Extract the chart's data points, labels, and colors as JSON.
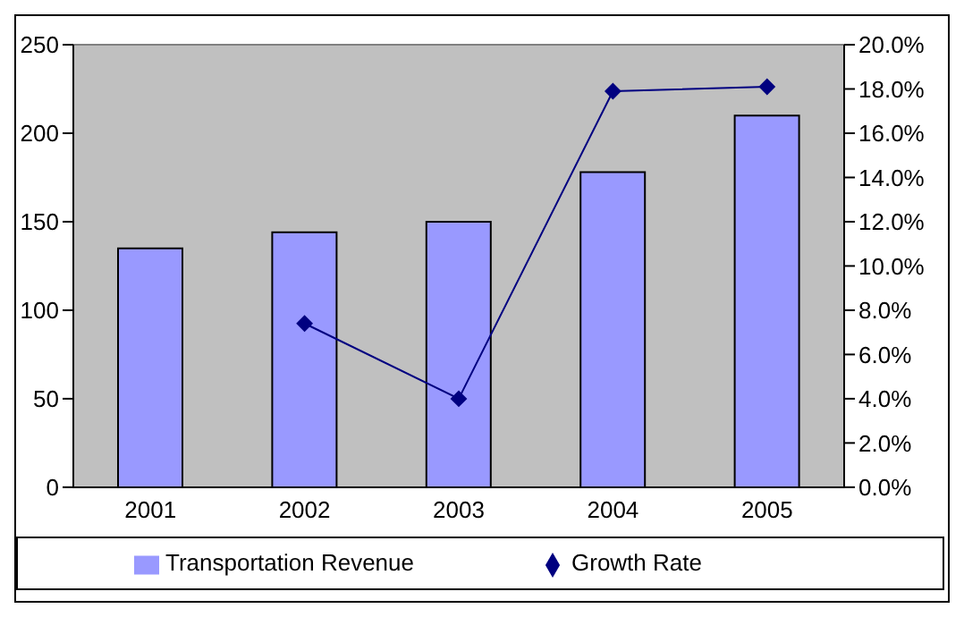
{
  "chart_data": {
    "type": "bar",
    "categories": [
      "2001",
      "2002",
      "2003",
      "2004",
      "2005"
    ],
    "series": [
      {
        "name": "Transportation Revenue",
        "color": "#9999ff",
        "values": [
          135,
          144,
          150,
          178,
          210
        ]
      },
      {
        "name": "Growth Rate",
        "type": "line",
        "axis": "y2",
        "color": "#000080",
        "values": [
          null,
          7.4,
          4.0,
          17.9,
          18.1
        ]
      }
    ],
    "ylim": [
      0,
      250
    ],
    "yticks": [
      0,
      50,
      100,
      150,
      200,
      250
    ],
    "y2lim": [
      0,
      20
    ],
    "y2ticks": [
      {
        "value": 0,
        "label": "0.0%"
      },
      {
        "value": 2,
        "label": "2.0%"
      },
      {
        "value": 4,
        "label": "4.0%"
      },
      {
        "value": 6,
        "label": "6.0%"
      },
      {
        "value": 8,
        "label": "8.0%"
      },
      {
        "value": 10,
        "label": "10.0%"
      },
      {
        "value": 12,
        "label": "12.0%"
      },
      {
        "value": 14,
        "label": "14.0%"
      },
      {
        "value": 16,
        "label": "16.0%"
      },
      {
        "value": 18,
        "label": "18.0%"
      },
      {
        "value": 20,
        "label": "20.0%"
      }
    ],
    "legend": "bottom",
    "marker": "diamond"
  }
}
